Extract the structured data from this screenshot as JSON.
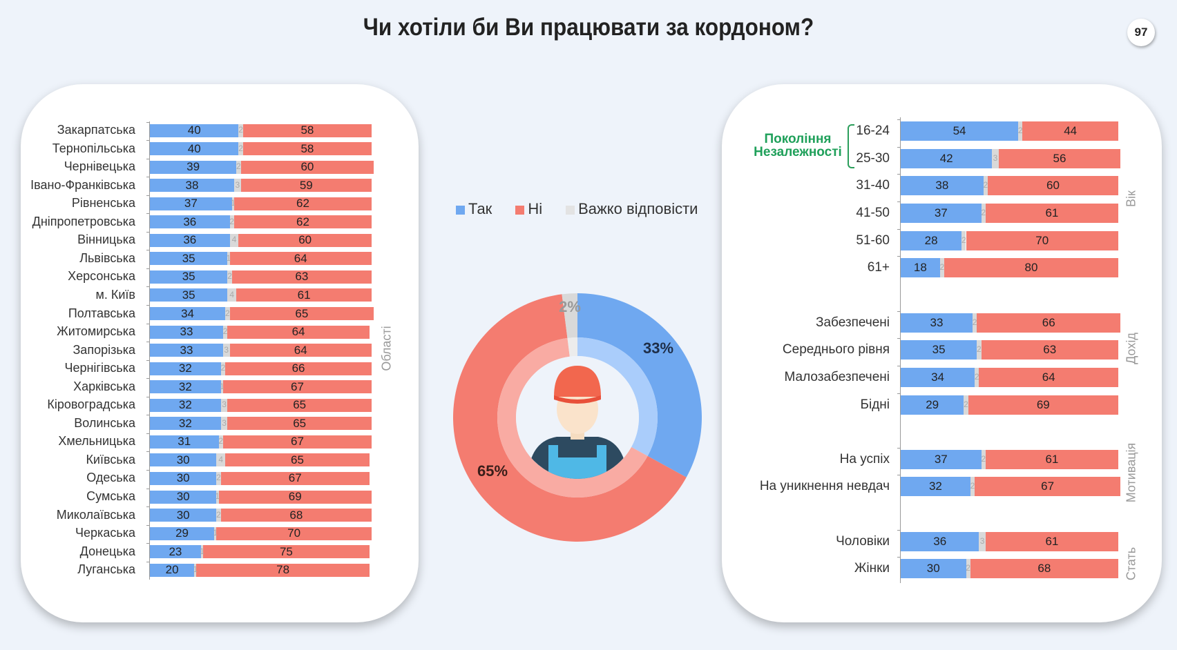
{
  "title": "Чи хотіли би Ви працювати за кордоном?",
  "page_number": "97",
  "colors": {
    "yes": "#6fa8f0",
    "no": "#f47c70",
    "dont_know": "#d9d9d9",
    "generation": "#1fa05a"
  },
  "legend": [
    {
      "label": "Так",
      "color": "#6fa8f0"
    },
    {
      "label": "Ні",
      "color": "#f47c70"
    },
    {
      "label": "Важко відповісти",
      "color": "#e3e3e3"
    }
  ],
  "chart_data": [
    {
      "type": "bar",
      "orientation": "horizontal",
      "stacked": "100%",
      "group_label": "Області",
      "categories": [
        "Закарпатська",
        "Тернопільська",
        "Чернівецька",
        "Івано-Франківська",
        "Рівненська",
        "Дніпропетровська",
        "Вінницька",
        "Львівська",
        "Херсонська",
        "м. Київ",
        "Полтавська",
        "Житомирська",
        "Запорізька",
        "Чернігівська",
        "Харківська",
        "Кіровоградська",
        "Волинська",
        "Хмельницька",
        "Київська",
        "Одеська",
        "Сумська",
        "Миколаївська",
        "Черкаська",
        "Донецька",
        "Луганська"
      ],
      "series": [
        {
          "name": "Так",
          "values": [
            40,
            40,
            39,
            38,
            37,
            36,
            36,
            35,
            35,
            35,
            34,
            33,
            33,
            32,
            32,
            32,
            32,
            31,
            30,
            30,
            30,
            30,
            29,
            23,
            20
          ]
        },
        {
          "name": "Важко відповісти",
          "values": [
            2,
            2,
            2,
            3,
            1,
            2,
            4,
            1,
            2,
            4,
            2,
            2,
            3,
            2,
            1,
            3,
            3,
            2,
            4,
            2,
            1,
            2,
            1,
            1,
            1
          ]
        },
        {
          "name": "Ні",
          "values": [
            58,
            58,
            60,
            59,
            62,
            62,
            60,
            64,
            63,
            61,
            65,
            64,
            64,
            66,
            67,
            65,
            65,
            67,
            65,
            67,
            69,
            68,
            70,
            75,
            78
          ]
        }
      ]
    },
    {
      "type": "pie",
      "variant": "donut",
      "labels": [
        "Так",
        "Ні",
        "Важко відповісти"
      ],
      "values": [
        33,
        65,
        2
      ],
      "value_labels": [
        "33%",
        "65%",
        "2%"
      ]
    },
    {
      "type": "bar",
      "orientation": "horizontal",
      "stacked": "100%",
      "groups": [
        {
          "label": "Вік",
          "categories": [
            "16-24",
            "25-30",
            "31-40",
            "41-50",
            "51-60",
            "61+"
          ],
          "yes": [
            54,
            42,
            38,
            37,
            28,
            18
          ],
          "dont_know": [
            2,
            3,
            2,
            2,
            2,
            2
          ],
          "no": [
            44,
            56,
            60,
            61,
            70,
            80
          ]
        },
        {
          "label": "Дохід",
          "categories": [
            "Забезпечені",
            "Середнього рівня",
            "Малозабезпечені",
            "Бідні"
          ],
          "yes": [
            33,
            35,
            34,
            29
          ],
          "dont_know": [
            2,
            2,
            2,
            2
          ],
          "no": [
            66,
            63,
            64,
            69
          ]
        },
        {
          "label": "Мотивація",
          "categories": [
            "На успіх",
            "На уникнення невдач"
          ],
          "yes": [
            37,
            32
          ],
          "dont_know": [
            2,
            2
          ],
          "no": [
            61,
            67
          ]
        },
        {
          "label": "Стать",
          "categories": [
            "Чоловіки",
            "Жінки"
          ],
          "yes": [
            36,
            30
          ],
          "dont_know": [
            3,
            2
          ],
          "no": [
            61,
            68
          ]
        }
      ],
      "annotation": "Покоління Незалежності"
    }
  ]
}
